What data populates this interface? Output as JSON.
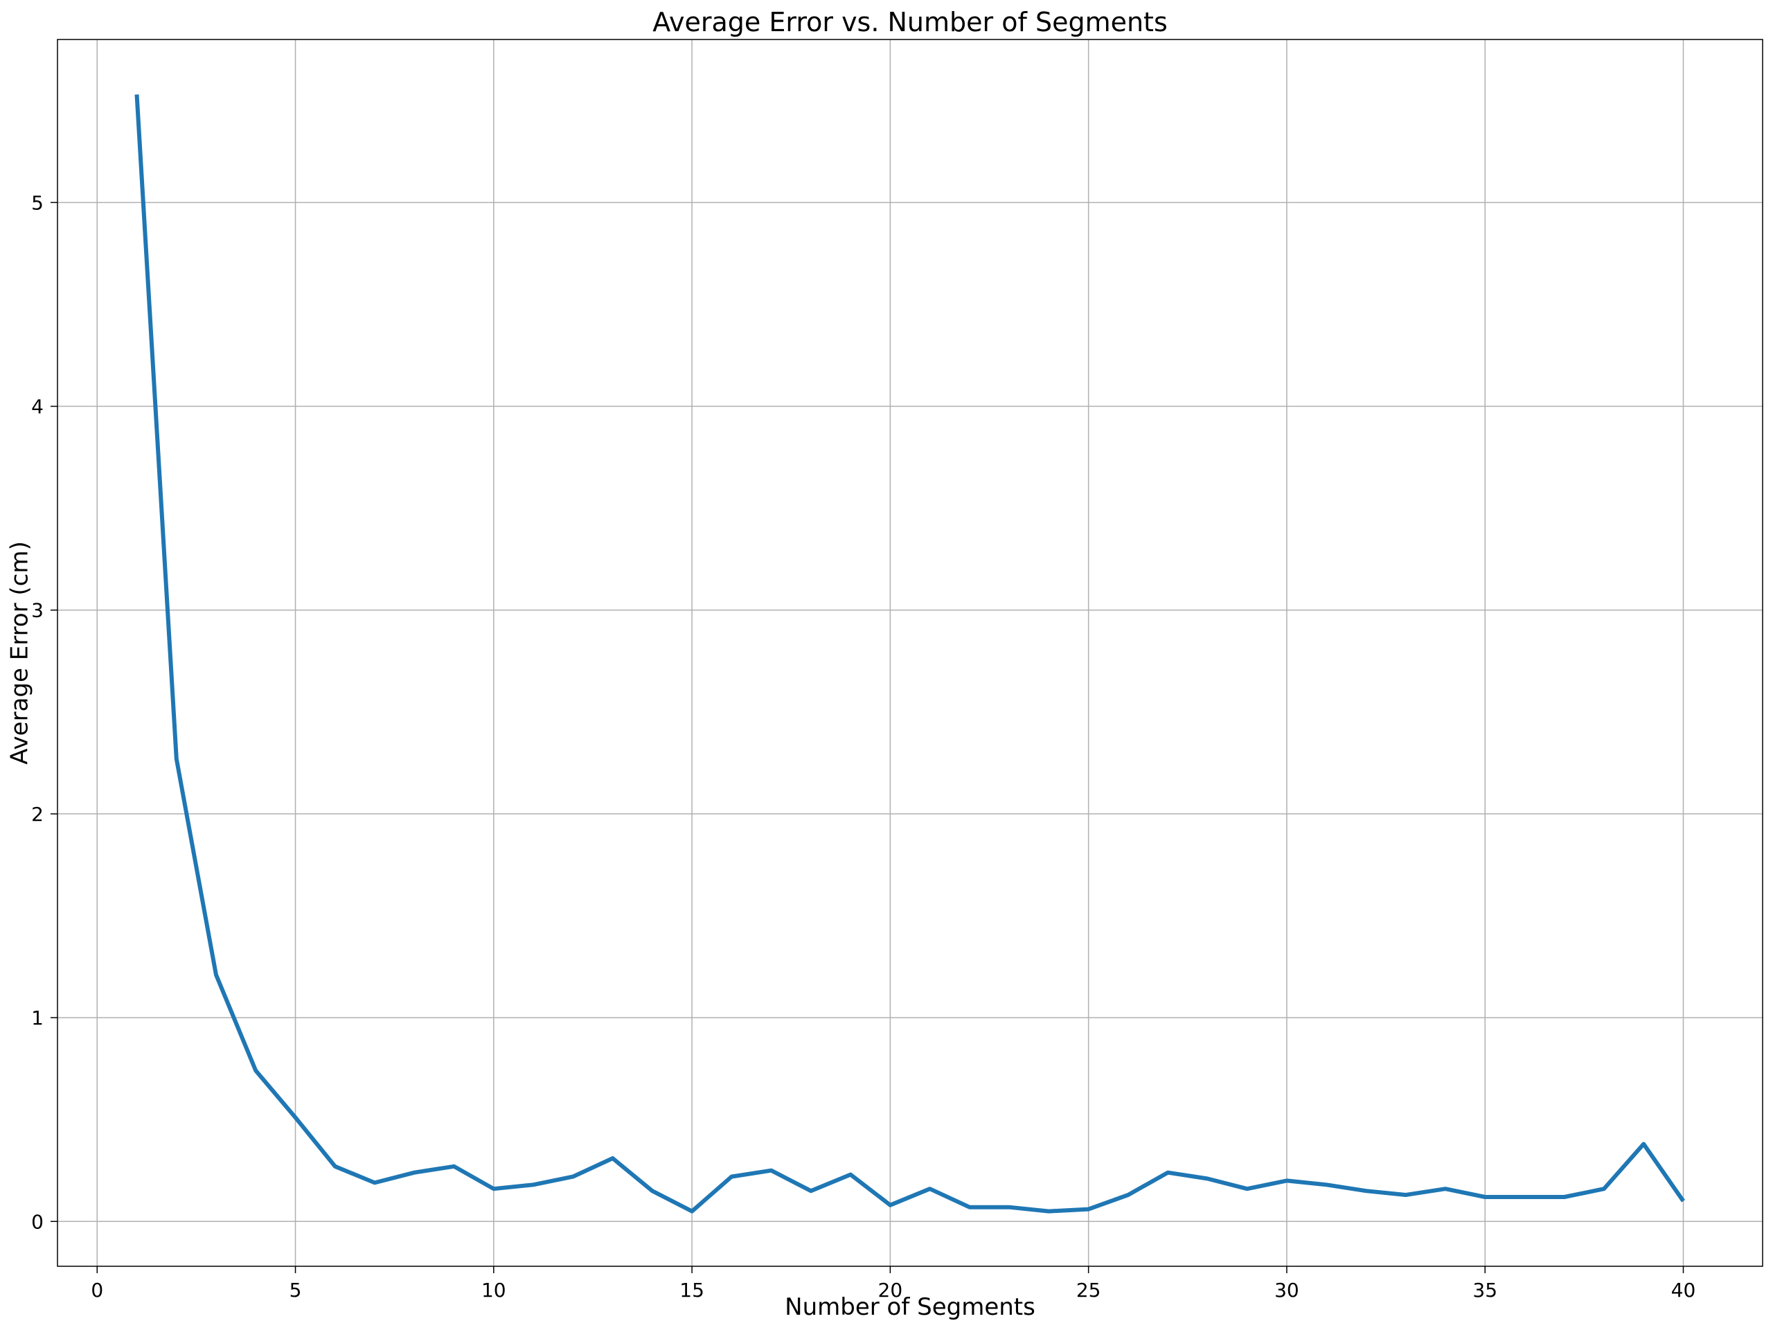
{
  "chart_data": {
    "type": "line",
    "title": "Average Error vs. Number of Segments",
    "xlabel": "Number of Segments",
    "ylabel": "Average Error (cm)",
    "xlim": [
      -1,
      42
    ],
    "ylim": [
      -0.22,
      5.8
    ],
    "xticks": [
      0,
      5,
      10,
      15,
      20,
      25,
      30,
      35,
      40
    ],
    "yticks": [
      0,
      1,
      2,
      3,
      4,
      5
    ],
    "grid": true,
    "line_color": "#1f77b4",
    "series": [
      {
        "x": [
          1,
          2,
          3,
          4,
          5,
          6,
          7,
          8,
          9,
          10,
          11,
          12,
          13,
          14,
          15,
          16,
          17,
          18,
          19,
          20,
          21,
          22,
          23,
          24,
          25,
          26,
          27,
          28,
          29,
          30,
          31,
          32,
          33,
          34,
          35,
          36,
          37,
          38,
          39,
          40
        ],
        "values": [
          5.53,
          2.27,
          1.21,
          0.74,
          0.51,
          0.27,
          0.19,
          0.24,
          0.27,
          0.16,
          0.18,
          0.22,
          0.31,
          0.15,
          0.05,
          0.22,
          0.25,
          0.15,
          0.23,
          0.08,
          0.16,
          0.07,
          0.07,
          0.05,
          0.06,
          0.13,
          0.24,
          0.21,
          0.16,
          0.2,
          0.18,
          0.15,
          0.13,
          0.16,
          0.12,
          0.12,
          0.12,
          0.16,
          0.38,
          0.1
        ]
      }
    ]
  }
}
